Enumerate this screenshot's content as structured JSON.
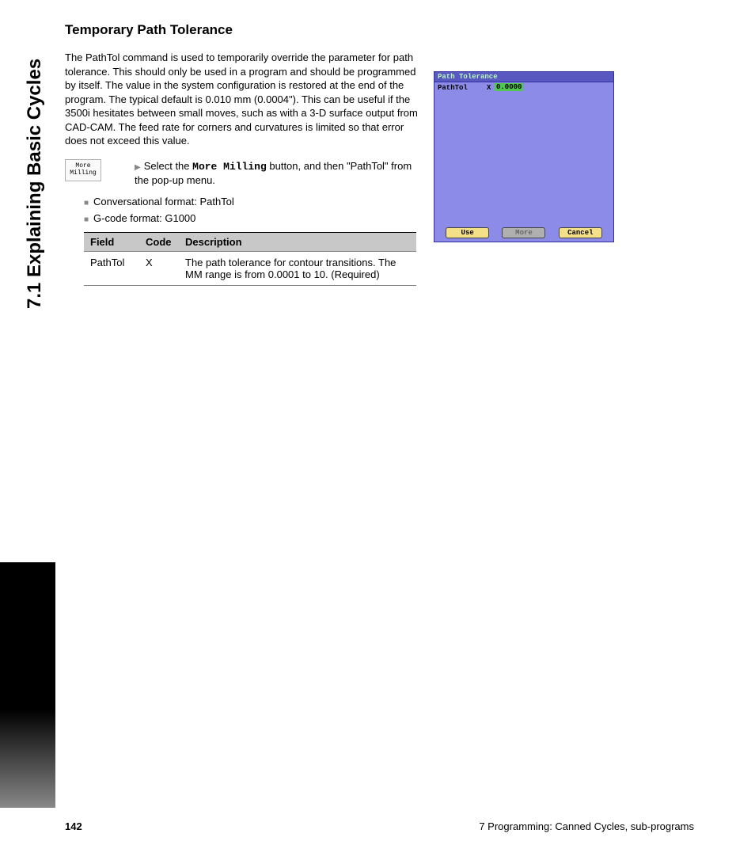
{
  "side_title": "7.1 Explaining Basic Cycles",
  "heading": "Temporary Path Tolerance",
  "paragraph": "The PathTol command is used to temporarily override the parameter for path tolerance. This should only be used in a program and should be programmed by itself. The value in the system configuration is restored at the end of the program. The typical default is 0.010 mm (0.0004\"). This can be useful if the 3500i hesitates between small moves, such as with a 3-D surface output from CAD-CAM. The feed rate for corners and curvatures is limited so that error does not exceed this value.",
  "button_icon": {
    "line1": "More",
    "line2": "Milling"
  },
  "instruction_prefix": "Select the ",
  "instruction_bold": "More Milling",
  "instruction_suffix": " button, and then \"PathTol\" from the pop-up menu.",
  "bullet1": "Conversational format: PathTol",
  "bullet2": "G-code format: G1000",
  "table": {
    "headers": {
      "field": "Field",
      "code": "Code",
      "desc": "Description"
    },
    "row": {
      "field": "PathTol",
      "code": "X",
      "desc": "The path tolerance for contour transitions. The MM range is from 0.0001 to 10. (Required)"
    },
    "header_bg": "#c8c8c8"
  },
  "dialog": {
    "title": "Path Tolerance",
    "label": "PathTol",
    "x": "X",
    "value": "0.0000",
    "buttons": {
      "use": "Use",
      "more": "More",
      "cancel": "Cancel"
    },
    "bg_color": "#8c8ce8",
    "title_bg": "#5858c0",
    "title_color": "#b8f8b8",
    "value_bg": "#50c850",
    "btn_active_bg": "#f4e088",
    "btn_disabled_bg": "#b0b0b0"
  },
  "footer": {
    "page_num": "142",
    "chapter": "7 Programming: Canned Cycles, sub-programs"
  }
}
